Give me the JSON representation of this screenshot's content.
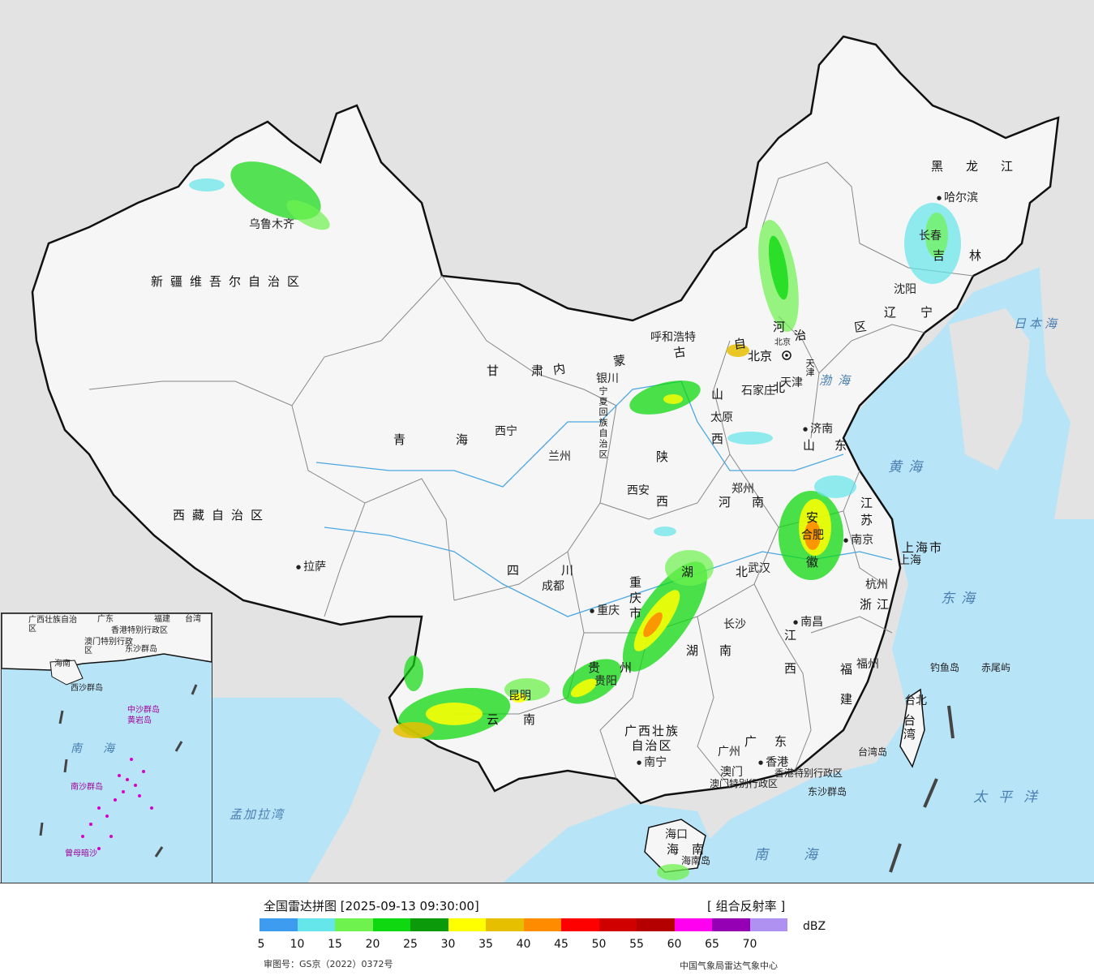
{
  "map": {
    "colors": {
      "background": "#e3e3e3",
      "china_land": "#f6f6f6",
      "ocean": "#b8e4f8",
      "border": "#111111",
      "province_border": "#888888",
      "river": "#4aa8e0"
    },
    "province_labels": [
      "新疆维吾尔自治区",
      "西藏自治区",
      "青海",
      "甘肃",
      "内蒙古自治区",
      "黑龙江",
      "吉林",
      "辽宁",
      "河北",
      "山西",
      "陕西",
      "宁夏回族自治区",
      "四川",
      "重庆市",
      "云南",
      "贵州",
      "广西壮族自治区",
      "广东",
      "湖南",
      "湖北",
      "河南",
      "山东",
      "江苏",
      "安徽",
      "浙江",
      "江西",
      "福建",
      "上海市",
      "海南",
      "台湾",
      "北京",
      "天津"
    ],
    "city_labels": [
      "乌鲁木齐",
      "拉萨",
      "西宁",
      "兰州",
      "银川",
      "呼和浩特",
      "北京",
      "天津",
      "石家庄",
      "太原",
      "济南",
      "郑州",
      "西安",
      "成都",
      "重庆",
      "贵阳",
      "昆明",
      "南宁",
      "广州",
      "香港",
      "澳门",
      "长沙",
      "武汉",
      "南昌",
      "合肥",
      "南京",
      "上海",
      "杭州",
      "福州",
      "台北",
      "哈尔滨",
      "长春",
      "沈阳",
      "海口"
    ],
    "sea_labels": [
      "渤海",
      "黄海",
      "东海",
      "南海",
      "太平洋",
      "日本海",
      "孟加拉湾"
    ],
    "island_labels": [
      "钓鱼岛",
      "赤尾屿",
      "东沙群岛",
      "台湾岛",
      "海南岛"
    ],
    "special_labels": [
      "香港特别行政区",
      "澳门特别行政区"
    ]
  },
  "inset": {
    "labels": [
      "广西壮族自治区",
      "广东",
      "福建",
      "台湾",
      "香港特别行政区",
      "澳门特别行政区",
      "东沙群岛",
      "海南",
      "西沙群岛",
      "中沙群岛",
      "黄岩岛",
      "南沙群岛",
      "曾母暗沙",
      "南海"
    ]
  },
  "legend": {
    "title": "全国雷达拼图 [2025-09-13 09:30:00]",
    "product": "[ 组合反射率 ]",
    "unit": "dBZ",
    "ticks": [
      "5",
      "10",
      "15",
      "20",
      "25",
      "30",
      "35",
      "40",
      "45",
      "50",
      "55",
      "60",
      "65",
      "70"
    ],
    "colors": [
      "#3d9cf0",
      "#64e6ea",
      "#6df24e",
      "#10d810",
      "#0a9a0a",
      "#ffff00",
      "#e6c000",
      "#ff8c00",
      "#ff0000",
      "#d00000",
      "#b40000",
      "#ff00f0",
      "#9600b4",
      "#ae91f0"
    ],
    "approval": "审图号：GS京（2022）0372号",
    "source": "中国气象局雷达气象中心"
  }
}
